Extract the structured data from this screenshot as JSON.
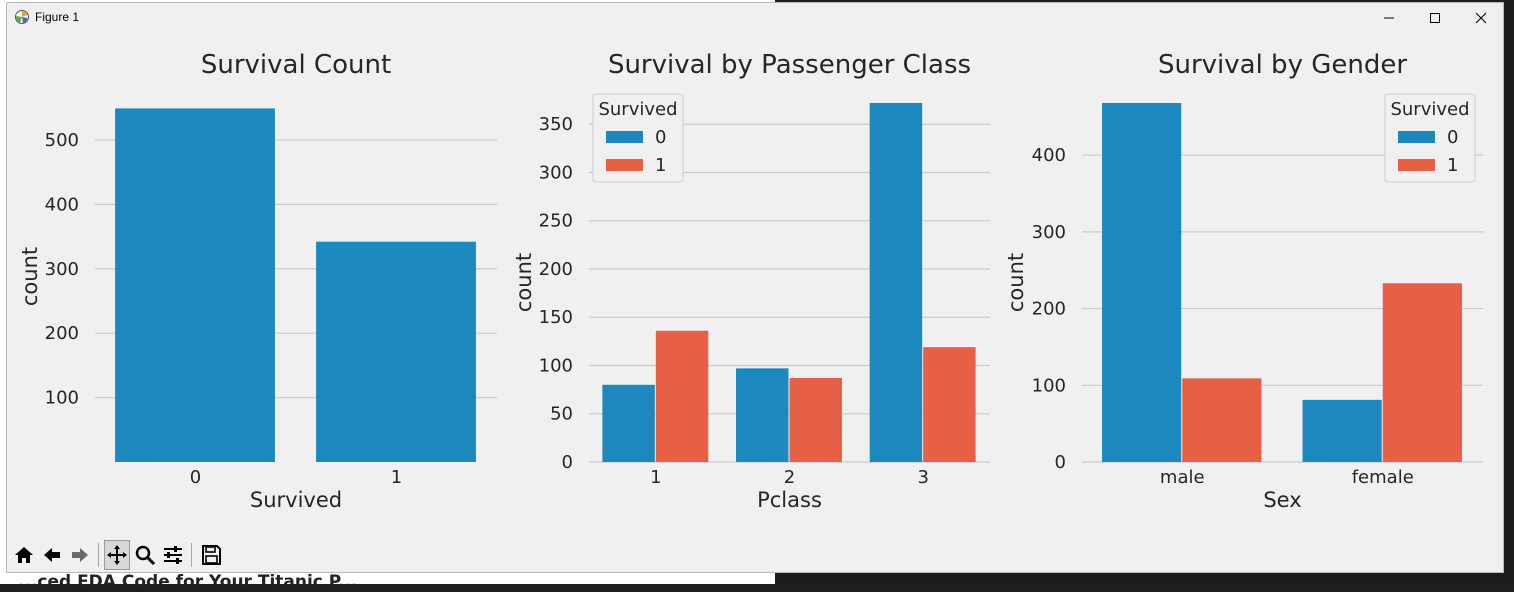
{
  "background": {
    "text": "...ced EDA Code for Your Titanic P..."
  },
  "window": {
    "title": "Figure 1",
    "icon": "matplotlib-icon"
  },
  "toolbar": {
    "buttons": [
      "home-icon",
      "back-icon",
      "forward-icon",
      "pan-icon",
      "zoom-icon",
      "configure-subplots-icon",
      "save-icon"
    ]
  },
  "colors": {
    "series0": "#1c88bd",
    "series1": "#e65f46",
    "grid": "#cbcbcb",
    "figure_bg": "#f0f0f0"
  },
  "chart_data": [
    {
      "type": "bar",
      "title": "Survival Count",
      "xlabel": "Survived",
      "ylabel": "count",
      "categories": [
        "0",
        "1"
      ],
      "series": [
        {
          "values": [
            549,
            342
          ]
        }
      ],
      "yticks": [
        100,
        200,
        300,
        400,
        500
      ],
      "ylim": [
        0,
        576
      ],
      "grid": true,
      "legend": null
    },
    {
      "type": "bar",
      "title": "Survival by Passenger Class",
      "xlabel": "Pclass",
      "ylabel": "count",
      "categories": [
        "1",
        "2",
        "3"
      ],
      "series": [
        {
          "name": "0",
          "values": [
            80,
            97,
            372
          ]
        },
        {
          "name": "1",
          "values": [
            136,
            87,
            119
          ]
        }
      ],
      "yticks": [
        0,
        50,
        100,
        150,
        200,
        250,
        300,
        350
      ],
      "ylim": [
        0,
        372
      ],
      "grid": true,
      "legend": {
        "title": "Survived",
        "placement": "top-left"
      }
    },
    {
      "type": "bar",
      "title": "Survival by Gender",
      "xlabel": "Sex",
      "ylabel": "count",
      "categories": [
        "male",
        "female"
      ],
      "series": [
        {
          "name": "0",
          "values": [
            468,
            81
          ]
        },
        {
          "name": "1",
          "values": [
            109,
            233
          ]
        }
      ],
      "yticks": [
        0,
        100,
        200,
        300,
        400
      ],
      "ylim": [
        0,
        468
      ],
      "grid": true,
      "legend": {
        "title": "Survived",
        "placement": "top-right"
      }
    }
  ]
}
